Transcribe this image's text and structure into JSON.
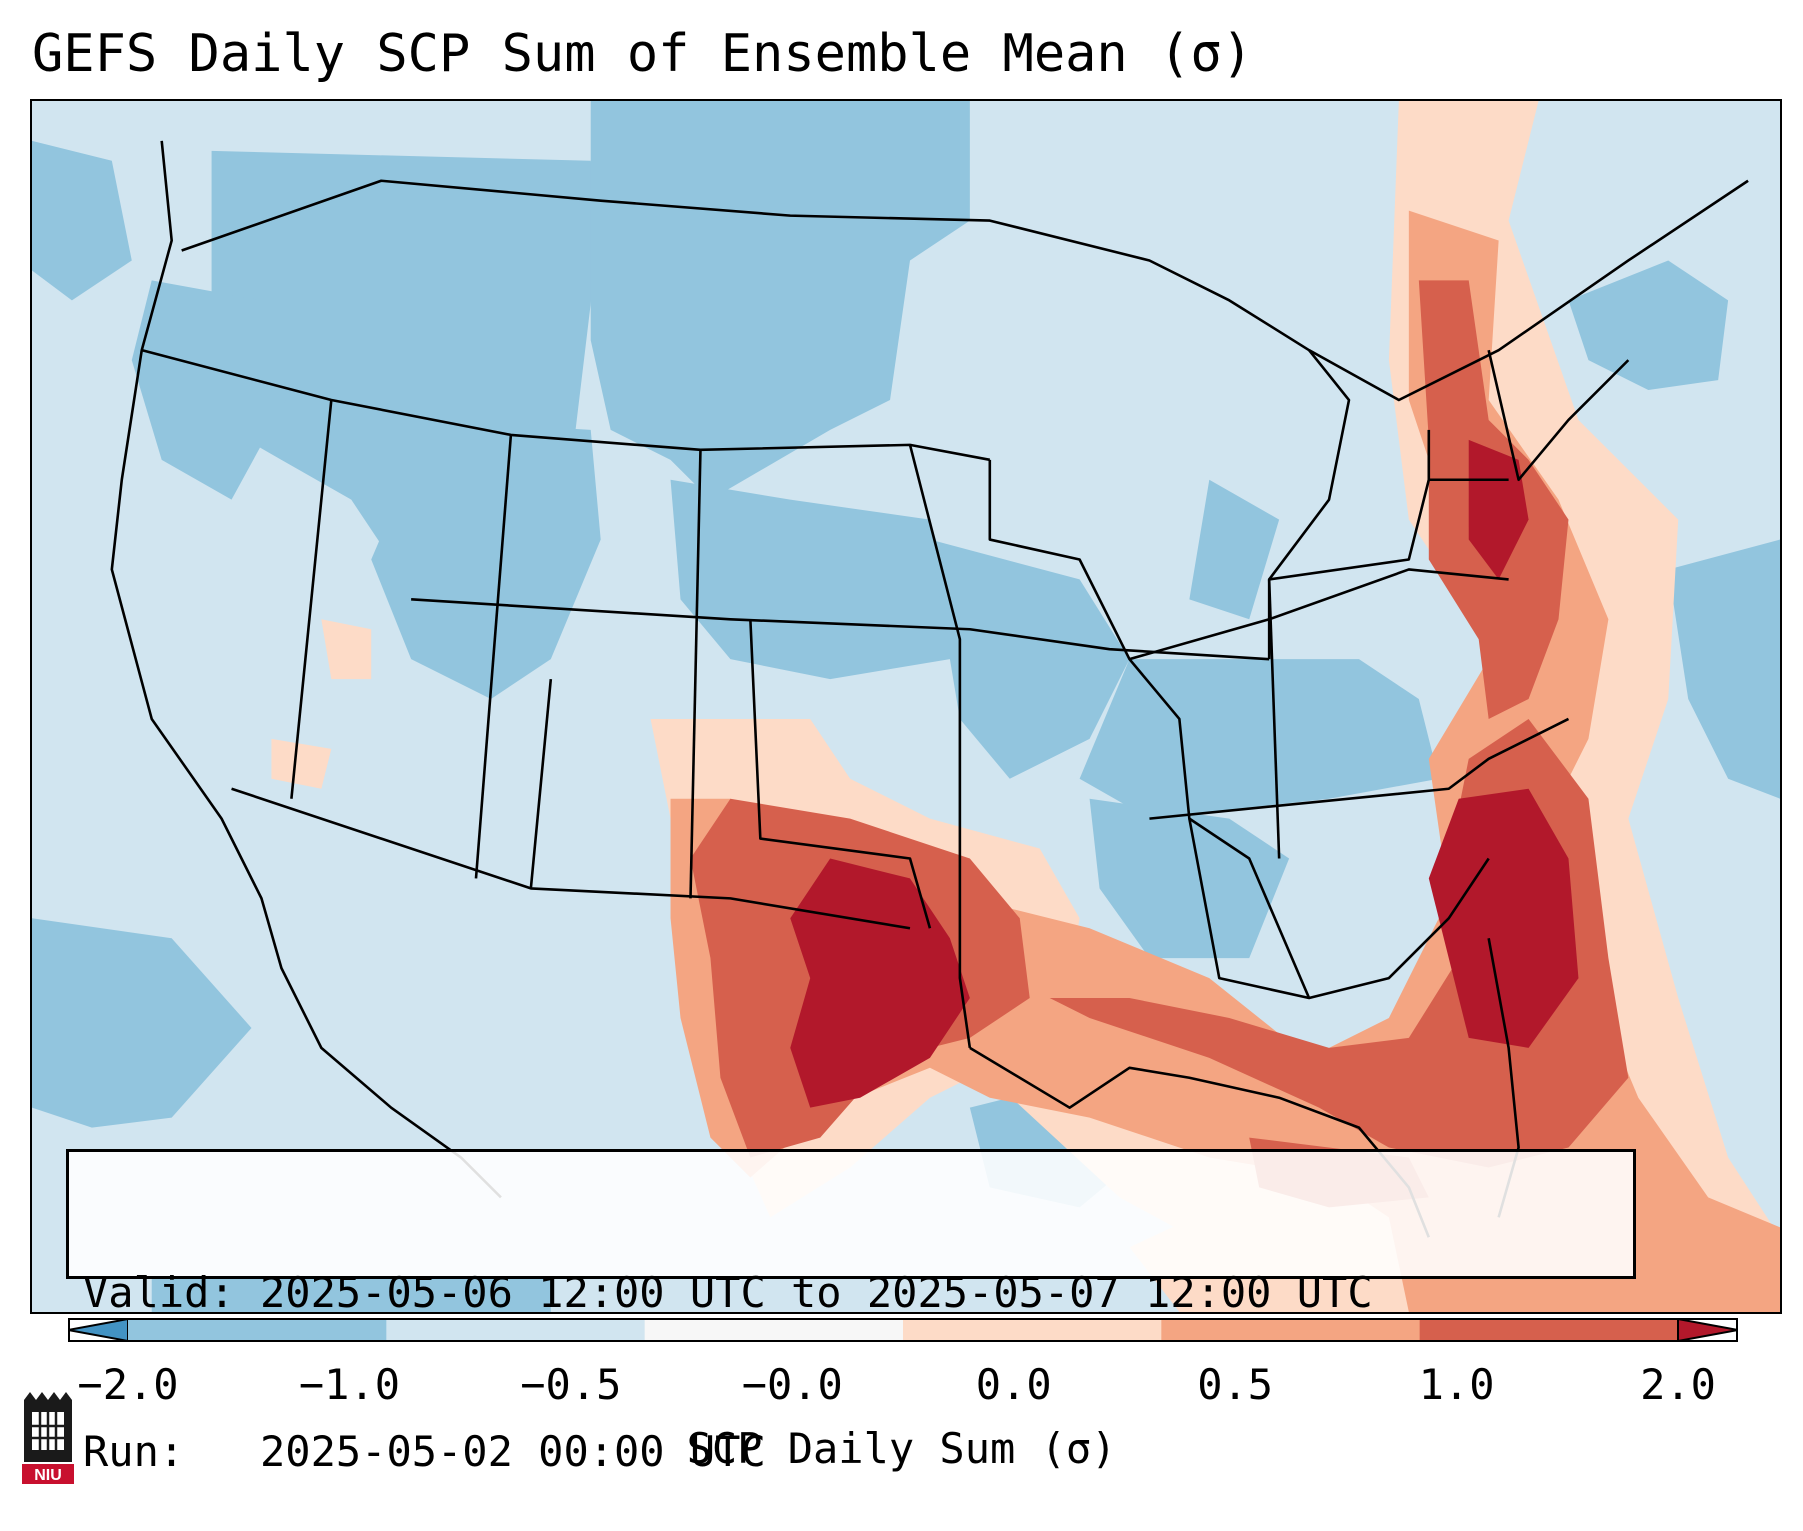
{
  "title": "GEFS Daily SCP Sum of Ensemble Mean (σ)",
  "info": {
    "valid_label": "Valid:",
    "valid_value": "2025-05-06 12:00 UTC to 2025-05-07 12:00 UTC",
    "run_label": "Run:",
    "run_value": "2025-05-02 00:00 UTC"
  },
  "colorbar": {
    "label": "SCP Daily Sum (σ)",
    "ticks": [
      "−2.0",
      "−1.0",
      "−0.5",
      "−0.0",
      "0.0",
      "0.5",
      "1.0",
      "2.0"
    ],
    "colors": [
      "#4393c3",
      "#92c5de",
      "#d1e5f0",
      "#f7f7f7",
      "#fddbc7",
      "#f4a582",
      "#d6604d",
      "#b2182b"
    ]
  },
  "logo": {
    "text": "NIU",
    "name": "Northern Illinois University logo"
  }
}
